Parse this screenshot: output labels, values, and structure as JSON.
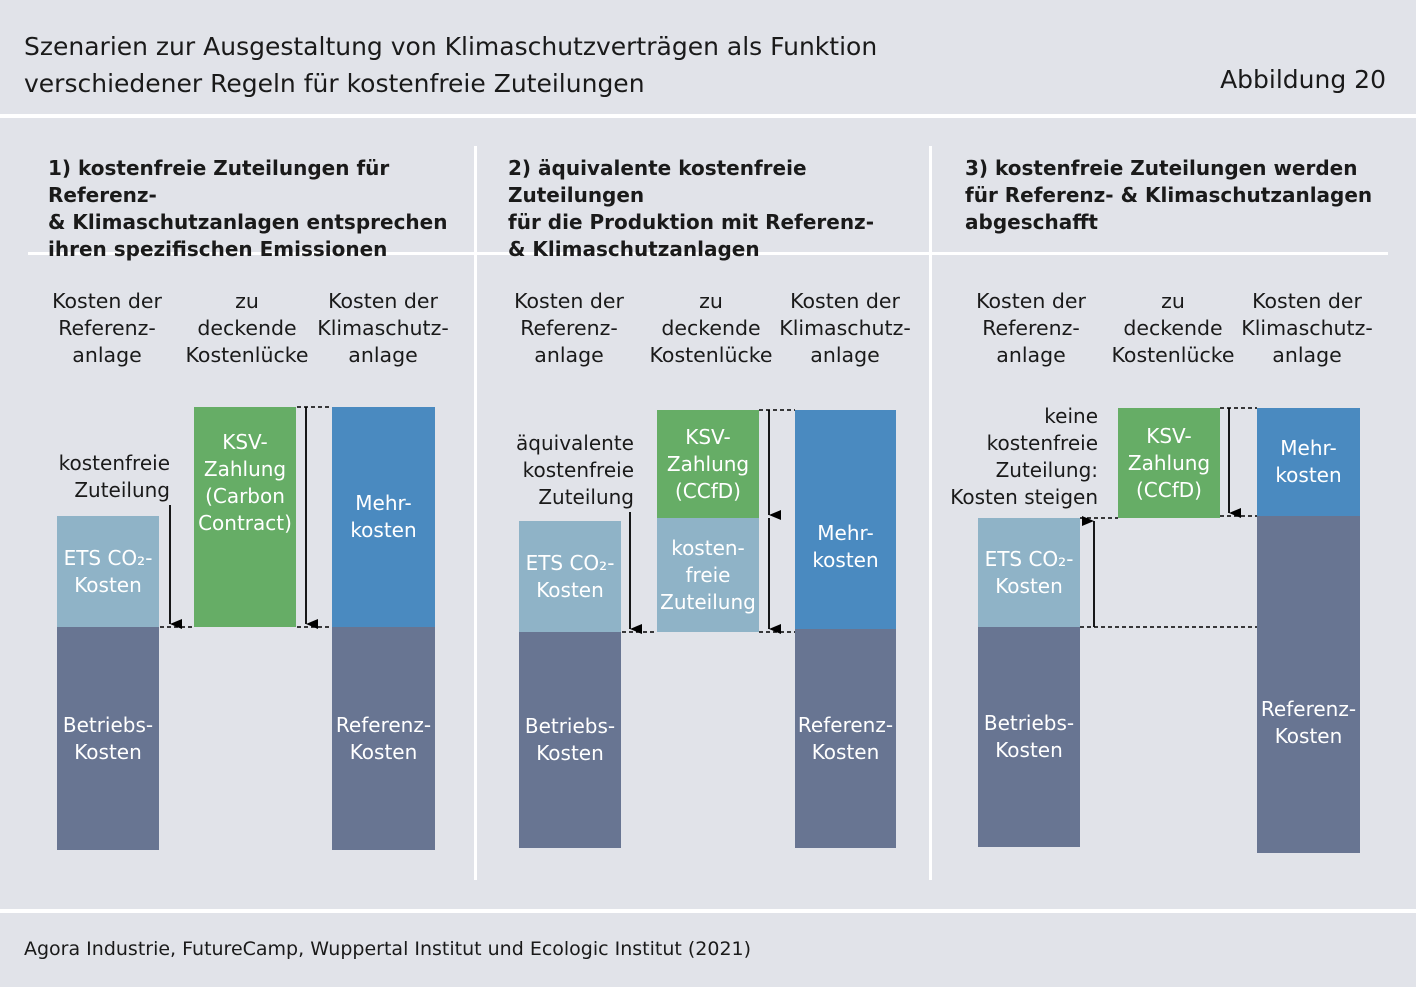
{
  "header": {
    "title_line1": "Szenarien zur Ausgestaltung von Klimaschutzverträgen als Funktion",
    "title_line2": "verschiedener Regeln für kostenfreie Zuteilungen",
    "figure_label": "Abbildung 20"
  },
  "column_labels": {
    "reference": [
      "Kosten der",
      "Referenz-",
      "anlage"
    ],
    "gap": [
      "zu",
      "deckende",
      "Kostenlücke"
    ],
    "climate": [
      "Kosten der",
      "Klimaschutz-",
      "anlage"
    ]
  },
  "panels": [
    {
      "title": [
        "1) kostenfreie Zuteilungen für Referenz-",
        "& Klimaschutzanlagen entsprechen",
        "ihren spezifischen Emissionen"
      ],
      "note": [
        "kostenfreie",
        "Zuteilung"
      ],
      "bars": {
        "op": [
          "Betriebs-",
          "Kosten"
        ],
        "ets": [
          "ETS CO₂-",
          "Kosten"
        ],
        "ksv": [
          "KSV-",
          "Zahlung",
          "(Carbon",
          "Contract)"
        ],
        "mehr": [
          "Mehr-",
          "kosten"
        ],
        "ref": [
          "Referenz-",
          "Kosten"
        ]
      }
    },
    {
      "title": [
        "2) äquivalente kostenfreie Zuteilungen",
        "für die Produktion mit Referenz-",
        "& Klimaschutzanlagen"
      ],
      "note": [
        "äquivalente",
        "kostenfreie",
        "Zuteilung"
      ],
      "bars": {
        "op": [
          "Betriebs-",
          "Kosten"
        ],
        "ets": [
          "ETS CO₂-",
          "Kosten"
        ],
        "ksv": [
          "KSV-",
          "Zahlung",
          "(CCfD)"
        ],
        "free": [
          "kosten-",
          "freie",
          "Zuteilung"
        ],
        "mehr": [
          "Mehr-",
          "kosten"
        ],
        "ref": [
          "Referenz-",
          "Kosten"
        ]
      }
    },
    {
      "title": [
        "3) kostenfreie Zuteilungen werden",
        "für Referenz- & Klimaschutzanlagen",
        "abgeschafft"
      ],
      "note": [
        "keine",
        "kostenfreie",
        "Zuteilung:",
        "Kosten steigen"
      ],
      "bars": {
        "op": [
          "Betriebs-",
          "Kosten"
        ],
        "ets": [
          "ETS CO₂-",
          "Kosten"
        ],
        "ksv": [
          "KSV-",
          "Zahlung",
          "(CCfD)"
        ],
        "mehr": [
          "Mehr-",
          "kosten"
        ],
        "ref": [
          "Referenz-",
          "Kosten"
        ]
      }
    }
  ],
  "colors": {
    "background": "#e1e3e9",
    "operating_costs": "#687592",
    "ets_costs": "#8fb3c7",
    "ksv_payment": "#66ad66",
    "additional_costs": "#4a8ac0"
  },
  "footer": {
    "source": "Agora Industrie, FutureCamp, Wuppertal Institut und Ecologic Institut (2021)"
  }
}
